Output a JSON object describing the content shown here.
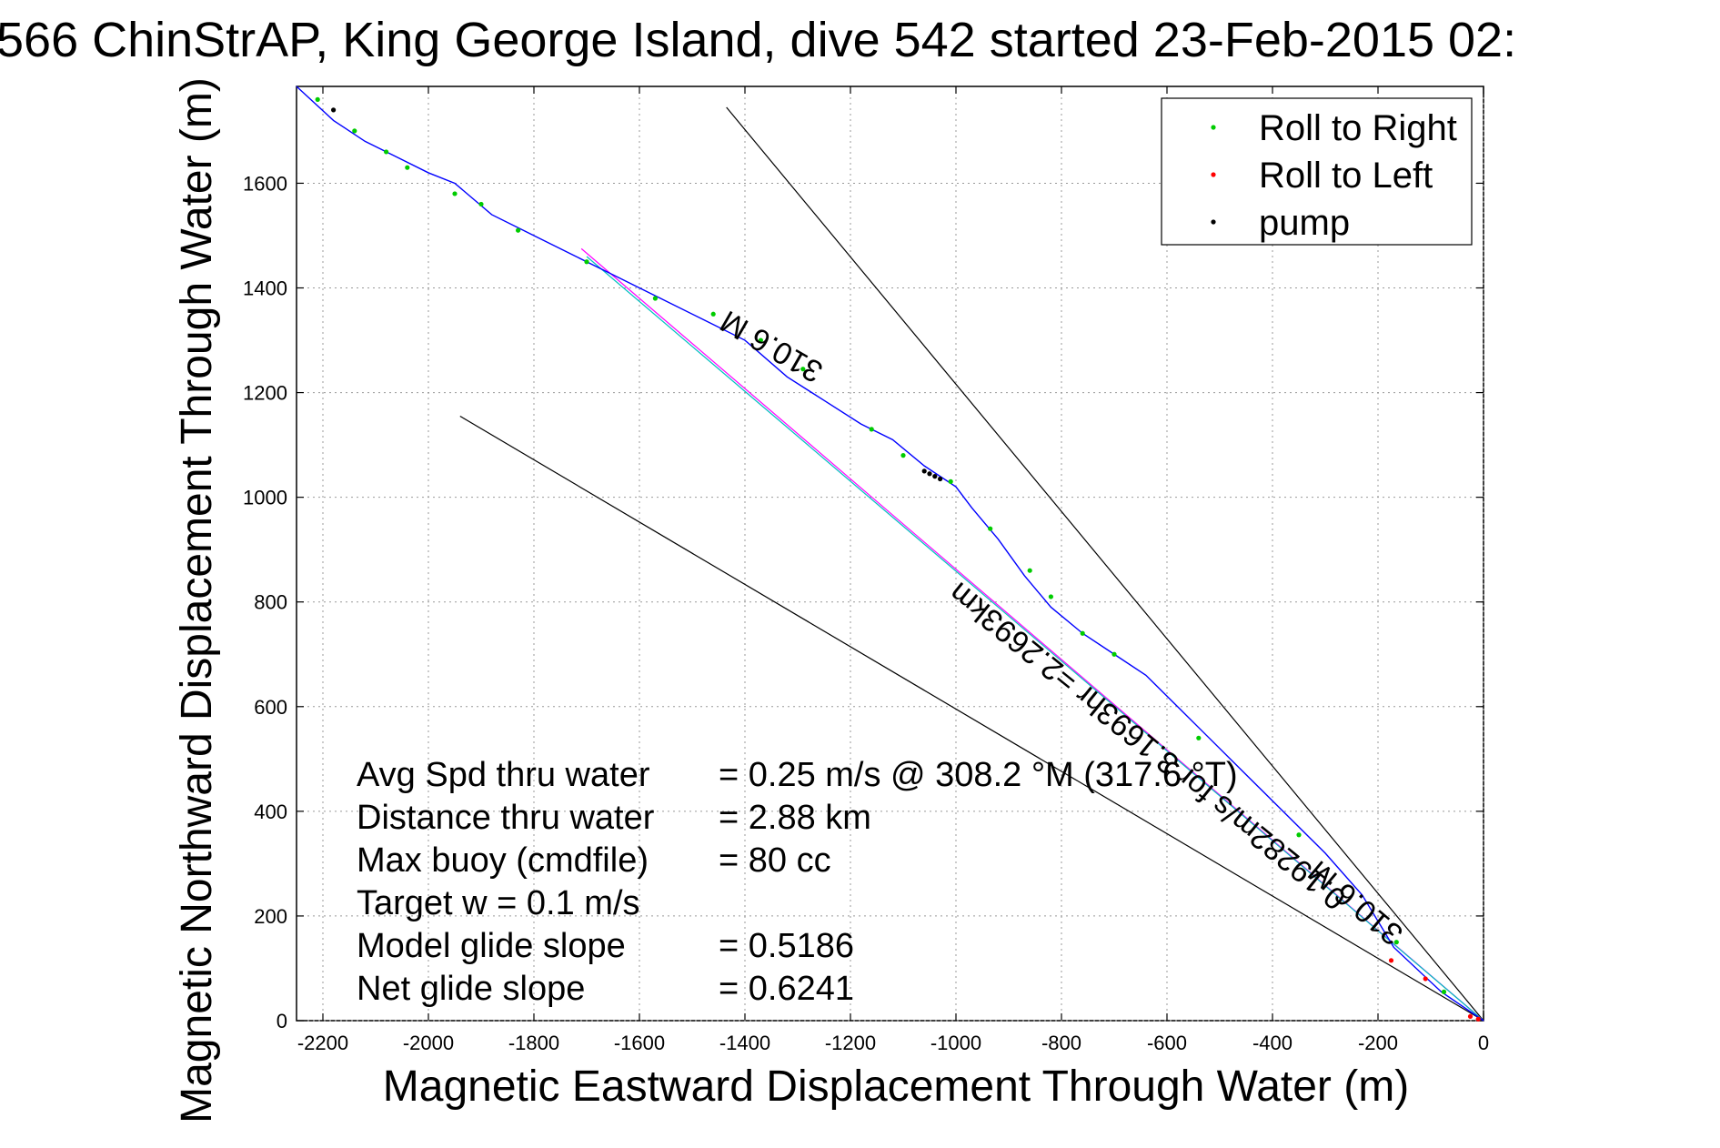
{
  "chart_data": {
    "type": "line",
    "title": "566 ChinStrAP, King George Island, dive 542 started 23-Feb-2015 02:",
    "xlabel": "Magnetic Eastward Displacement Through Water (m)",
    "ylabel": "Magnetic Northward Displacement Through Water (m)",
    "xlim": [
      -2250,
      0
    ],
    "ylim": [
      0,
      1785
    ],
    "xticks": [
      -2200,
      -2000,
      -1800,
      -1600,
      -1400,
      -1200,
      -1000,
      -800,
      -600,
      -400,
      -200,
      0
    ],
    "yticks": [
      0,
      200,
      400,
      600,
      800,
      1000,
      1200,
      1400,
      1600
    ],
    "grid": true,
    "legend": {
      "position": "top-right",
      "entries": [
        {
          "label": "Roll to Right",
          "color": "#00cc00"
        },
        {
          "label": "Roll to Left",
          "color": "#ff0000"
        },
        {
          "label": "pump",
          "color": "#000000"
        }
      ]
    },
    "track": {
      "color": "#0000ff",
      "x": [
        0,
        -80,
        -170,
        -230,
        -300,
        -350,
        -400,
        -450,
        -520,
        -580,
        -640,
        -700,
        -760,
        -820,
        -870,
        -920,
        -970,
        -1000,
        -1060,
        -1120,
        -1180,
        -1250,
        -1320,
        -1400,
        -1480,
        -1560,
        -1640,
        -1720,
        -1800,
        -1880,
        -1950,
        -2000,
        -2060,
        -2120,
        -2180,
        -2250
      ],
      "y": [
        0,
        55,
        140,
        240,
        320,
        370,
        420,
        470,
        540,
        600,
        660,
        700,
        740,
        790,
        850,
        920,
        980,
        1020,
        1060,
        1110,
        1140,
        1185,
        1230,
        1300,
        1340,
        1380,
        1420,
        1460,
        1500,
        1540,
        1600,
        1620,
        1650,
        1680,
        1720,
        1785
      ]
    },
    "roll_right_points": {
      "x": [
        -75,
        -165,
        -350,
        -540,
        -700,
        -760,
        -820,
        -860,
        -935,
        -1010,
        -1100,
        -1160,
        -1290,
        -1370,
        -1460,
        -1570,
        -1700,
        -1830,
        -1900,
        -1950,
        -2040,
        -2080,
        -2140,
        -2210
      ],
      "y": [
        55,
        150,
        355,
        540,
        700,
        740,
        810,
        860,
        940,
        1030,
        1080,
        1130,
        1245,
        1300,
        1350,
        1380,
        1450,
        1510,
        1560,
        1580,
        1630,
        1660,
        1700,
        1760
      ]
    },
    "roll_left_points": {
      "x": [
        -10,
        -25,
        -110,
        -175
      ],
      "y": [
        3,
        8,
        80,
        115
      ]
    },
    "pump_points": {
      "x": [
        -1040,
        -1050,
        -1060,
        -1030,
        -2180
      ],
      "y": [
        1040,
        1045,
        1050,
        1035,
        1740
      ]
    },
    "reference_lines": [
      {
        "name": "heading 310.6 M (upper)",
        "color": "#000000",
        "x": [
          0,
          -1435
        ],
        "y": [
          0,
          1745
        ]
      },
      {
        "name": "heading 310.6 M (lower)",
        "color": "#000000",
        "x": [
          0,
          -1940
        ],
        "y": [
          0,
          1155
        ]
      },
      {
        "name": "heading 310.6 M (center)",
        "color": "#ff00ff",
        "x": [
          0,
          -1710
        ],
        "y": [
          0,
          1475
        ]
      },
      {
        "name": "current",
        "color": "#00bfbf",
        "x": [
          0,
          -1700
        ],
        "y": [
          0,
          1460
        ]
      }
    ],
    "annotations": [
      {
        "text": "310.6 M",
        "x": -1340,
        "y": 1305,
        "rotation": 210
      },
      {
        "text": "310.6 M",
        "x": -230,
        "y": 240,
        "rotation": 220
      },
      {
        "text": "0.19282m/s for 3.1693hr =2.2693km",
        "x": -625,
        "y": 540,
        "rotation": 219
      }
    ],
    "stats": [
      {
        "label": "Avg Spd thru water",
        "value": "=  0.25 m/s @ 308.2 °M (317.6 °T)"
      },
      {
        "label": "Distance thru water",
        "value": "=  2.88 km"
      },
      {
        "label": "Max buoy (cmdfile)",
        "value": "= 80 cc"
      },
      {
        "label": "Target w    = 0.1 m/s",
        "value": ""
      },
      {
        "label": "Model glide slope",
        "value": "= 0.5186"
      },
      {
        "label": "Net glide slope",
        "value": "= 0.6241"
      }
    ]
  }
}
